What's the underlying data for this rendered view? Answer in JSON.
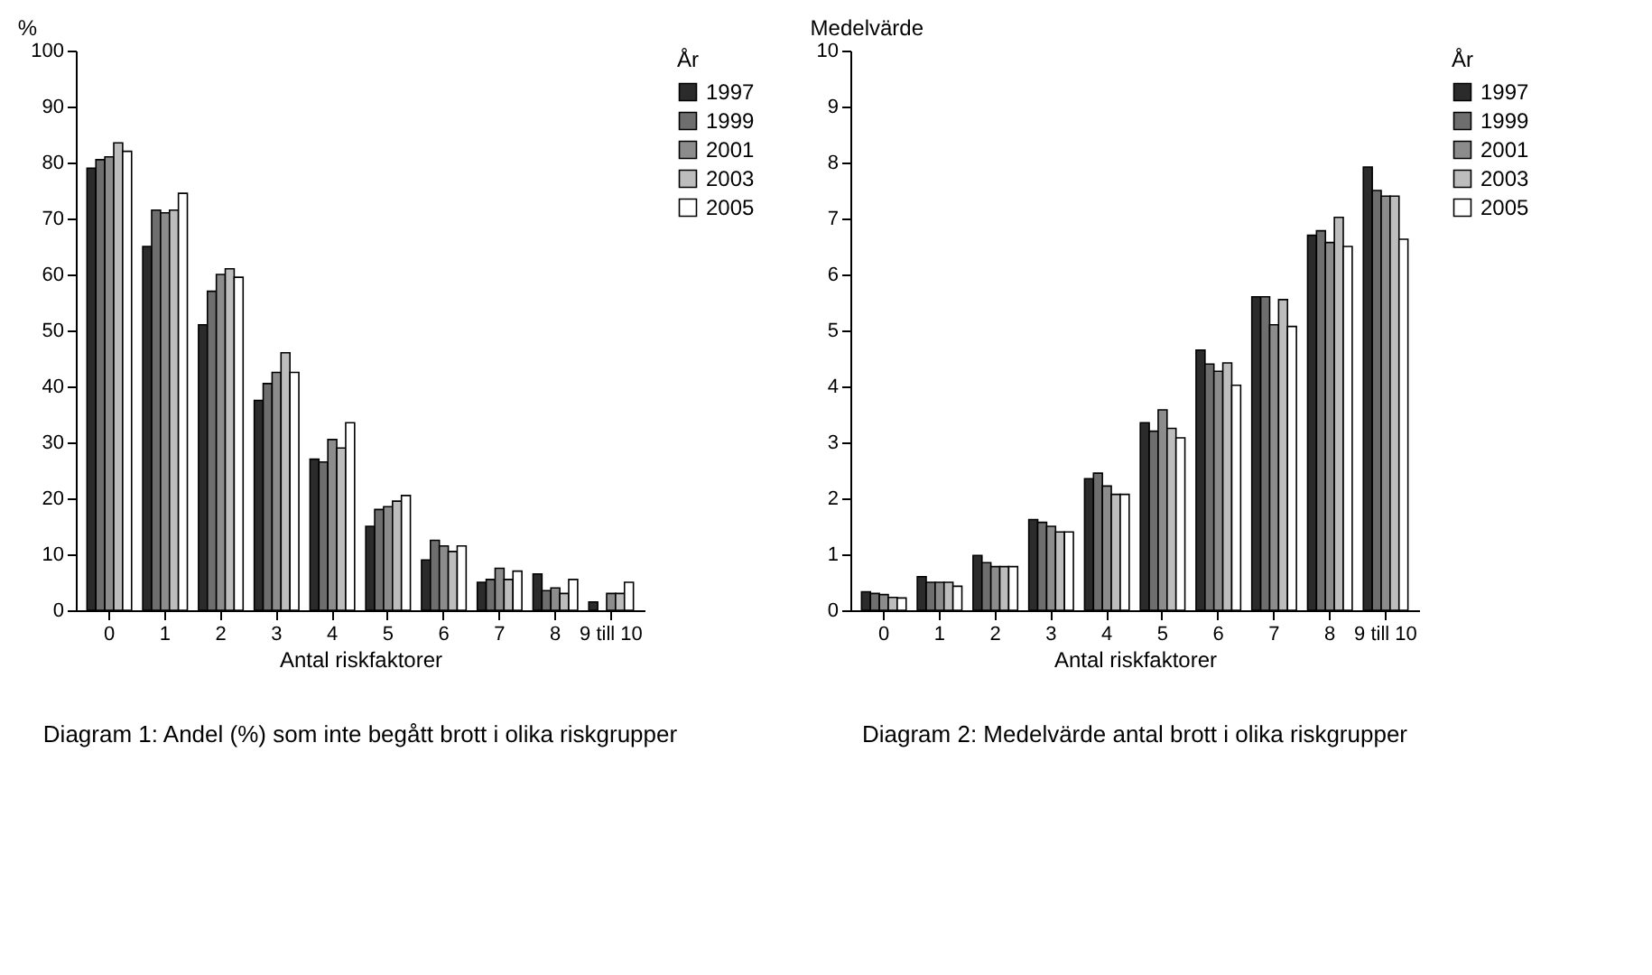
{
  "chart_data": [
    {
      "type": "bar",
      "title": "Diagram 1: Andel (%) som inte begått\nbrott i olika riskgrupper",
      "xlabel": "Antal riskfaktorer",
      "ylabel": "%",
      "legend_title": "År",
      "legend": "top right",
      "categories": [
        "0",
        "1",
        "2",
        "3",
        "4",
        "5",
        "6",
        "7",
        "8",
        "9 till 10"
      ],
      "ylim": [
        0,
        100
      ],
      "yticks": [
        0,
        10,
        20,
        30,
        40,
        50,
        60,
        70,
        80,
        90,
        100
      ],
      "series": [
        {
          "name": "1997",
          "color": "#2b2b2b",
          "values": [
            79,
            65,
            51,
            37.5,
            27,
            15,
            9,
            5,
            6.5,
            1.5
          ]
        },
        {
          "name": "1999",
          "color": "#6e6e6e",
          "values": [
            80.5,
            71.5,
            57,
            40.5,
            26.5,
            18,
            12.5,
            5.5,
            3.5,
            null
          ]
        },
        {
          "name": "2001",
          "color": "#8c8c8c",
          "values": [
            81,
            71,
            60,
            42.5,
            30.5,
            18.5,
            11.5,
            7.5,
            4,
            3
          ]
        },
        {
          "name": "2003",
          "color": "#bdbdbd",
          "values": [
            83.5,
            71.5,
            61,
            46,
            29,
            19.5,
            10.5,
            5.5,
            3,
            3
          ]
        },
        {
          "name": "2005",
          "color": "#ffffff",
          "values": [
            82,
            74.5,
            59.5,
            42.5,
            33.5,
            20.5,
            11.5,
            7,
            5.5,
            5
          ]
        }
      ]
    },
    {
      "type": "bar",
      "title": "Diagram 2: Medelvärde antal brott\ni olika riskgrupper",
      "xlabel": "Antal riskfaktorer",
      "ylabel": "Medelvärde",
      "legend_title": "År",
      "legend": "top right",
      "categories": [
        "0",
        "1",
        "2",
        "3",
        "4",
        "5",
        "6",
        "7",
        "8",
        "9 till 10"
      ],
      "ylim": [
        0,
        10
      ],
      "yticks": [
        0,
        1,
        2,
        3,
        4,
        5,
        6,
        7,
        8,
        9,
        10
      ],
      "series": [
        {
          "name": "1997",
          "color": "#2b2b2b",
          "values": [
            0.33,
            0.6,
            0.98,
            1.62,
            2.35,
            3.35,
            4.65,
            5.6,
            6.7,
            7.92
          ]
        },
        {
          "name": "1999",
          "color": "#6e6e6e",
          "values": [
            0.3,
            0.5,
            0.85,
            1.57,
            2.45,
            3.2,
            4.4,
            5.6,
            6.78,
            7.5
          ]
        },
        {
          "name": "2001",
          "color": "#8c8c8c",
          "values": [
            0.28,
            0.5,
            0.78,
            1.5,
            2.22,
            3.58,
            4.27,
            5.1,
            6.57,
            7.4
          ]
        },
        {
          "name": "2003",
          "color": "#bdbdbd",
          "values": [
            0.23,
            0.5,
            0.78,
            1.4,
            2.07,
            3.25,
            4.42,
            5.55,
            7.02,
            7.4
          ]
        },
        {
          "name": "2005",
          "color": "#ffffff",
          "values": [
            0.22,
            0.43,
            0.78,
            1.4,
            2.07,
            3.08,
            4.02,
            5.07,
            6.5,
            6.63
          ]
        }
      ]
    }
  ]
}
